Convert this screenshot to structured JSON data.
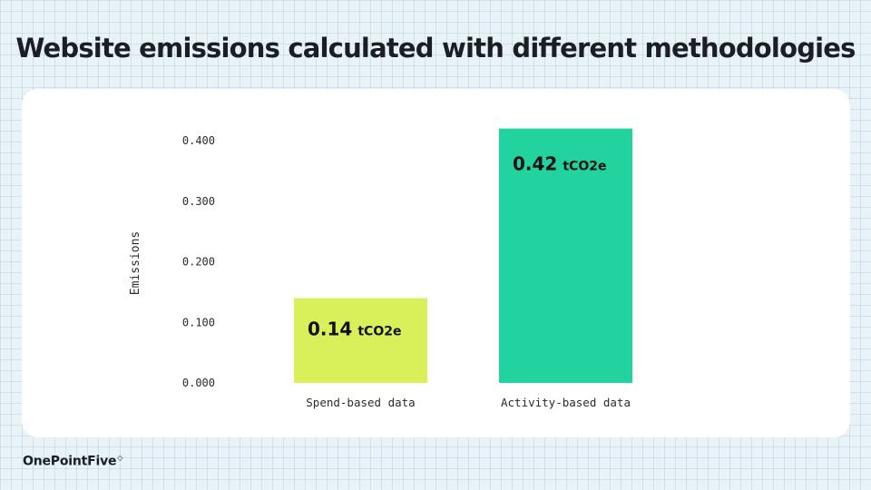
{
  "title": "Website emissions calculated with different methodologies",
  "brand": {
    "name": "OnePointFive",
    "mark": "◇"
  },
  "colors": {
    "spend_bar": "#d9f05b",
    "activity_bar": "#22d3a0"
  },
  "chart_data": {
    "type": "bar",
    "title": "",
    "xlabel": "",
    "ylabel": "Emissions",
    "ylim": [
      0,
      0.4
    ],
    "yticks": [
      "0.000",
      "0.100",
      "0.200",
      "0.300",
      "0.400"
    ],
    "categories": [
      "Spend-based data",
      "Activity-based data"
    ],
    "values": [
      0.14,
      0.42
    ],
    "data_labels": [
      {
        "value": "0.14",
        "unit": "tCO2e"
      },
      {
        "value": "0.42",
        "unit": "tCO2e"
      }
    ],
    "grid": false
  }
}
